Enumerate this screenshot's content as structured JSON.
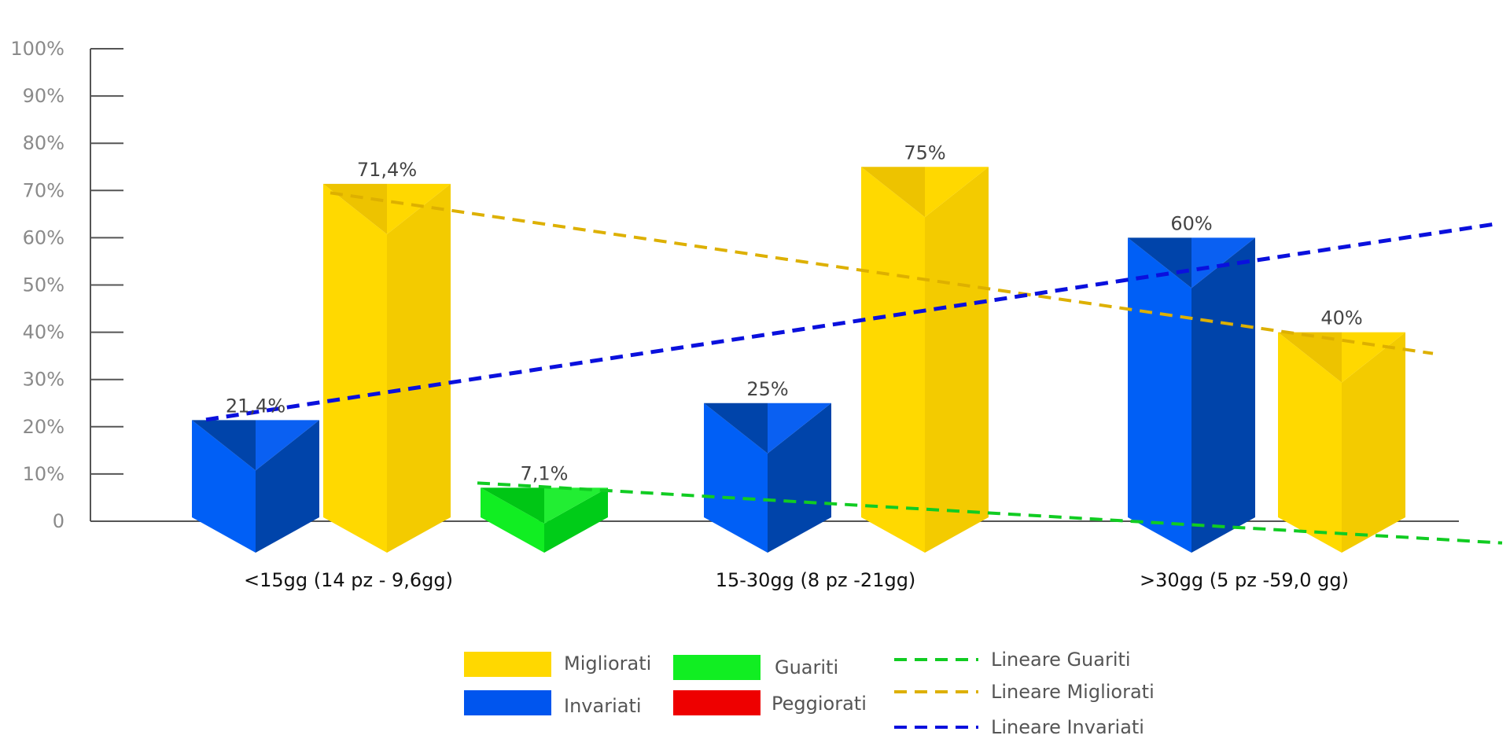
{
  "chart_data": {
    "type": "bar",
    "categories": [
      "<15gg (14 pz - 9,6gg)",
      "15-30gg (8 pz -21gg)",
      ">30gg (5 pz -59,0 gg)"
    ],
    "series": [
      {
        "name": "Invariati",
        "color": "#0055ee",
        "values": [
          21.4,
          25,
          60
        ],
        "labels": [
          "21,4%",
          "25%",
          "60%"
        ]
      },
      {
        "name": "Migliorati",
        "color": "#ffd800",
        "values": [
          71.4,
          75,
          40
        ],
        "labels": [
          "71,4%",
          "75%",
          "40%"
        ]
      },
      {
        "name": "Guariti",
        "color": "#11ee22",
        "values": [
          7.1,
          0,
          0
        ],
        "labels": [
          "7,1%",
          "",
          ""
        ]
      },
      {
        "name": "Peggiorati",
        "color": "#ee0000",
        "values": [
          0,
          0,
          0
        ],
        "labels": [
          "",
          "",
          ""
        ]
      }
    ],
    "trendlines": [
      {
        "name": "Lineare Guariti",
        "color": "#11cc22"
      },
      {
        "name": "Lineare Migliorati",
        "color": "#ddb000"
      },
      {
        "name": "Lineare Invariati",
        "color": "#0a10dd"
      }
    ],
    "y_ticks": [
      "0",
      "10%",
      "20%",
      "30%",
      "40%",
      "50%",
      "60%",
      "70%",
      "80%",
      "90%",
      "100%"
    ],
    "ylim": [
      0,
      100
    ],
    "grid": false,
    "legend_position": "bottom",
    "title": "",
    "xlabel": "",
    "ylabel": ""
  }
}
